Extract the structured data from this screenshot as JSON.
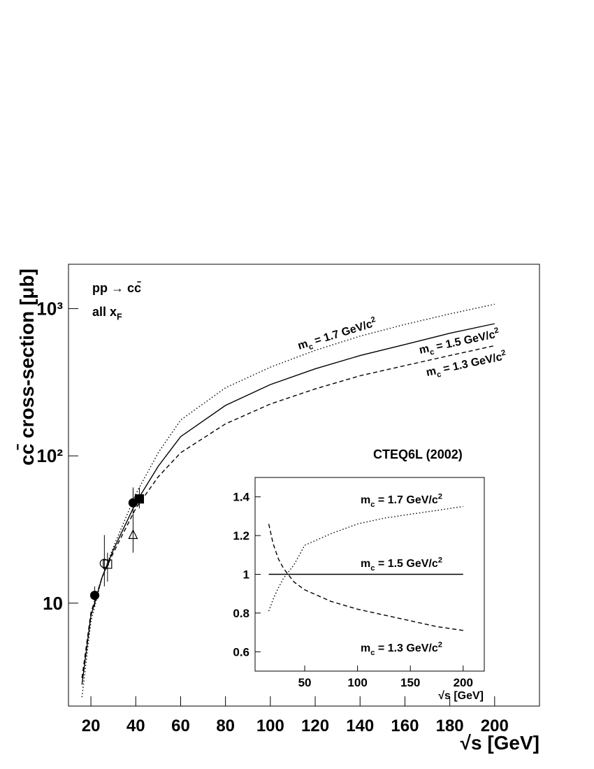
{
  "chart_data": [
    {
      "type": "line",
      "y_title": "cc̄ cross-section [μb]",
      "x_title": "√s [GeV]",
      "log_y": true,
      "xlim": [
        10,
        220
      ],
      "ylim": [
        2,
        2000
      ],
      "xticks": [
        20,
        40,
        60,
        80,
        100,
        120,
        140,
        160,
        180,
        200
      ],
      "yticks": [
        10,
        {
          "value": 100,
          "label": "10²"
        },
        {
          "value": 1000,
          "label": "10³"
        }
      ],
      "annotations": [
        {
          "base": "pp → cc̄"
        },
        {
          "base": "all x",
          "sub": "F"
        },
        {
          "base": "CTEQ6L (2002)"
        },
        {
          "base": "m",
          "sub": "c",
          "text": " = 1.7 GeV/c",
          "sup": "2"
        },
        {
          "base": "m",
          "sub": "c",
          "text": " = 1.5 GeV/c",
          "sup": "2"
        },
        {
          "base": "m",
          "sub": "c",
          "text": " = 1.3 GeV/c",
          "sup": "2"
        }
      ],
      "series": [
        {
          "style": "dotted",
          "color": "#000000",
          "x": [
            16,
            20,
            25,
            30,
            40,
            50,
            60,
            80,
            100,
            120,
            140,
            160,
            180,
            200
          ],
          "values": [
            2.3,
            7.5,
            15,
            24,
            55,
            105,
            175,
            290,
            400,
            520,
            650,
            780,
            920,
            1070
          ]
        },
        {
          "style": "solid",
          "color": "#000000",
          "x": [
            16,
            20,
            25,
            30,
            40,
            50,
            60,
            80,
            100,
            120,
            140,
            160,
            180,
            200
          ],
          "values": [
            2.8,
            8.2,
            15,
            23,
            48,
            85,
            135,
            220,
            305,
            390,
            480,
            570,
            680,
            790
          ]
        },
        {
          "style": "dashed",
          "color": "#000000",
          "x": [
            16,
            20,
            25,
            30,
            40,
            50,
            60,
            80,
            100,
            120,
            140,
            160,
            180,
            200
          ],
          "values": [
            3.1,
            8.6,
            15,
            22,
            44,
            72,
            105,
            165,
            225,
            285,
            350,
            410,
            480,
            560
          ]
        },
        {
          "marker": "circle-filled",
          "color": "#000000",
          "x": [
            21.7
          ],
          "values": [
            11.3
          ],
          "yerr_minus": [
            1.8
          ],
          "yerr_plus": [
            1.7
          ]
        },
        {
          "marker": "circle-open",
          "color": "#000000",
          "x": [
            26
          ],
          "values": [
            18.6
          ],
          "yerr_minus": [
            5.6
          ],
          "yerr_plus": [
            10.4
          ]
        },
        {
          "marker": "square-open",
          "color": "#000000",
          "x": [
            27.4
          ],
          "values": [
            18.4
          ],
          "yerr_minus": [
            4.4
          ],
          "yerr_plus": [
            3.6
          ]
        },
        {
          "marker": "triangle-open",
          "color": "#000000",
          "x": [
            38.8
          ],
          "values": [
            29
          ],
          "yerr_minus": [
            7
          ],
          "yerr_plus": [
            8
          ]
        },
        {
          "marker": "circle-filled",
          "color": "#000000",
          "x": [
            38.8
          ],
          "values": [
            48
          ],
          "yerr_minus": [
            11
          ],
          "yerr_plus": [
            13
          ]
        },
        {
          "marker": "square-filled",
          "color": "#000000",
          "x": [
            41.6
          ],
          "values": [
            51
          ],
          "yerr_minus": [
            7
          ],
          "yerr_plus": [
            10
          ]
        }
      ]
    },
    {
      "type": "line",
      "x_title": "√s [GeV]",
      "xlim": [
        3,
        220
      ],
      "ylim": [
        0.5,
        1.5
      ],
      "xticks": [
        50,
        100,
        150,
        200
      ],
      "yticks": [
        0.6,
        0.8,
        1,
        1.2,
        1.4
      ],
      "annotations": [
        {
          "base": "m",
          "sub": "c",
          "text": " = 1.7 GeV/c",
          "sup": "2"
        },
        {
          "base": "m",
          "sub": "c",
          "text": " = 1.5 GeV/c",
          "sup": "2"
        },
        {
          "base": "m",
          "sub": "c",
          "text": " = 1.3 GeV/c",
          "sup": "2"
        }
      ],
      "series": [
        {
          "style": "dotted",
          "color": "#000000",
          "x": [
            16,
            20,
            25,
            30,
            40,
            50,
            75,
            100,
            125,
            150,
            175,
            200
          ],
          "values": [
            0.81,
            0.87,
            0.93,
            0.98,
            1.05,
            1.15,
            1.21,
            1.26,
            1.29,
            1.31,
            1.33,
            1.35
          ]
        },
        {
          "style": "solid",
          "color": "#000000",
          "x": [
            16,
            200
          ],
          "values": [
            1,
            1
          ]
        },
        {
          "style": "dashed",
          "color": "#000000",
          "x": [
            16,
            20,
            25,
            30,
            40,
            50,
            75,
            100,
            125,
            150,
            175,
            200
          ],
          "values": [
            1.26,
            1.16,
            1.08,
            1.03,
            0.96,
            0.92,
            0.86,
            0.82,
            0.79,
            0.76,
            0.73,
            0.71
          ]
        }
      ]
    }
  ]
}
